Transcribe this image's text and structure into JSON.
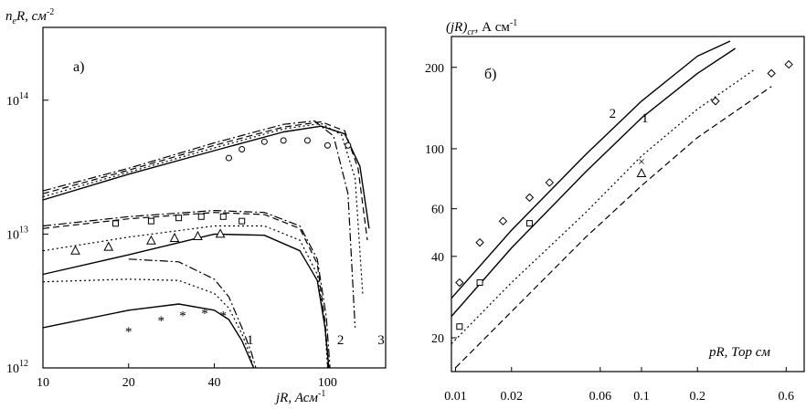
{
  "chart_data": [
    {
      "panel_label": "а)",
      "type": "line",
      "x_axis": {
        "label": "jR, Асм",
        "label_sup": "-1",
        "ticks": [
          "10",
          "20",
          "40",
          "100"
        ],
        "scale": "log",
        "range": [
          10,
          160
        ]
      },
      "y_axis": {
        "label": "n",
        "label_sub": "e",
        "label_rest": "R, см",
        "label_sup": "-2",
        "ticks": [
          {
            "value": 1000000000000.0,
            "base": "10",
            "exp": "12"
          },
          {
            "value": 10000000000000.0,
            "base": "10",
            "exp": "13"
          },
          {
            "value": 100000000000000.0,
            "base": "10",
            "exp": "14"
          }
        ],
        "scale": "log",
        "range": [
          1000000000000.0,
          350000000000000.0
        ]
      },
      "curve_labels": [
        {
          "text": "1",
          "at": [
            52,
            1500000000000.0
          ]
        },
        {
          "text": "2",
          "at": [
            108,
            1500000000000.0
          ]
        },
        {
          "text": "3",
          "at": [
            150,
            1500000000000.0
          ]
        }
      ],
      "series": [
        {
          "group": "3",
          "style": "solid",
          "x": [
            10,
            20,
            40,
            70,
            95,
            115,
            130,
            140
          ],
          "y": [
            18000000000000.0,
            28000000000000.0,
            42000000000000.0,
            58000000000000.0,
            64000000000000.0,
            56000000000000.0,
            32000000000000.0,
            11000000000000.0
          ]
        },
        {
          "group": "3",
          "style": "dashed",
          "x": [
            10,
            20,
            40,
            70,
            95,
            115,
            128,
            138
          ],
          "y": [
            20000000000000.0,
            30000000000000.0,
            46000000000000.0,
            63000000000000.0,
            69000000000000.0,
            59000000000000.0,
            31000000000000.0,
            9000000000000.0
          ]
        },
        {
          "group": "3",
          "style": "dotted",
          "x": [
            10,
            20,
            40,
            70,
            95,
            112,
            125,
            133
          ],
          "y": [
            19000000000000.0,
            29000000000000.0,
            44000000000000.0,
            61000000000000.0,
            67000000000000.0,
            55000000000000.0,
            26000000000000.0,
            3500000000000.0
          ]
        },
        {
          "group": "3",
          "style": "dashdot",
          "x": [
            10,
            20,
            40,
            70,
            90,
            105,
            118,
            125
          ],
          "y": [
            21000000000000.0,
            31000000000000.0,
            48000000000000.0,
            66000000000000.0,
            70000000000000.0,
            54000000000000.0,
            20000000000000.0,
            2000000000000.0
          ]
        },
        {
          "group": "2",
          "style": "solid",
          "x": [
            10,
            20,
            40,
            60,
            80,
            92,
            98,
            101
          ],
          "y": [
            5000000000000.0,
            7000000000000.0,
            10000000000000.0,
            9800000000000.0,
            7500000000000.0,
            4500000000000.0,
            2000000000000.0,
            1000000000000.0
          ]
        },
        {
          "group": "2",
          "style": "dashed",
          "x": [
            10,
            20,
            40,
            60,
            80,
            92,
            98,
            101
          ],
          "y": [
            11000000000000.0,
            13000000000000.0,
            14500000000000.0,
            14000000000000.0,
            11000000000000.0,
            6000000000000.0,
            2200000000000.0,
            1000000000000.0
          ]
        },
        {
          "group": "2",
          "style": "dotted",
          "x": [
            10,
            20,
            40,
            60,
            80,
            92,
            98,
            100
          ],
          "y": [
            7500000000000.0,
            9500000000000.0,
            11500000000000.0,
            11500000000000.0,
            9000000000000.0,
            5000000000000.0,
            2000000000000.0,
            1000000000000.0
          ]
        },
        {
          "group": "2",
          "style": "dashdot",
          "x": [
            10,
            20,
            40,
            60,
            80,
            92,
            99,
            102
          ],
          "y": [
            11500000000000.0,
            13500000000000.0,
            15000000000000.0,
            14500000000000.0,
            11500000000000.0,
            6500000000000.0,
            2400000000000.0,
            1000000000000.0
          ]
        },
        {
          "group": "1",
          "style": "solid",
          "x": [
            10,
            20,
            30,
            40,
            45,
            50,
            53,
            55
          ],
          "y": [
            2000000000000.0,
            2700000000000.0,
            3000000000000.0,
            2700000000000.0,
            2300000000000.0,
            1600000000000.0,
            1200000000000.0,
            1000000000000.0
          ]
        },
        {
          "group": "1",
          "style": "dotted",
          "x": [
            10,
            20,
            30,
            40,
            45,
            50,
            53,
            55
          ],
          "y": [
            4400000000000.0,
            4600000000000.0,
            4500000000000.0,
            3600000000000.0,
            2800000000000.0,
            1800000000000.0,
            1300000000000.0,
            1000000000000.0
          ]
        },
        {
          "group": "1",
          "style": "dashdot",
          "x": [
            20,
            30,
            40,
            45,
            50,
            54,
            56
          ],
          "y": [
            6500000000000.0,
            6200000000000.0,
            4600000000000.0,
            3400000000000.0,
            2000000000000.0,
            1300000000000.0,
            1000000000000.0
          ]
        }
      ],
      "markers": [
        {
          "shape": "circle",
          "x": [
            45,
            50,
            60,
            70,
            85,
            100,
            118
          ],
          "y": [
            37000000000000.0,
            43000000000000.0,
            49000000000000.0,
            50000000000000.0,
            50000000000000.0,
            46000000000000.0,
            46000000000000.0
          ]
        },
        {
          "shape": "square",
          "x": [
            18,
            24,
            30,
            36,
            43,
            50
          ],
          "y": [
            12000000000000.0,
            12500000000000.0,
            13200000000000.0,
            13500000000000.0,
            13500000000000.0,
            12500000000000.0
          ]
        },
        {
          "shape": "triangle",
          "x": [
            13,
            17,
            24,
            29,
            35,
            42
          ],
          "y": [
            7500000000000.0,
            8000000000000.0,
            8900000000000.0,
            9300000000000.0,
            9600000000000.0,
            10000000000000.0
          ]
        },
        {
          "shape": "star",
          "x": [
            20,
            26,
            31,
            37,
            43
          ],
          "y": [
            1900000000000.0,
            2300000000000.0,
            2500000000000.0,
            2600000000000.0,
            2500000000000.0
          ]
        }
      ]
    },
    {
      "panel_label": "б)",
      "type": "line",
      "x_axis": {
        "label": "pR, Тор см",
        "ticks": [
          "0.01",
          "0.02",
          "0.06",
          "0.1",
          "0.2",
          "0.6"
        ],
        "scale": "log",
        "range": [
          0.0095,
          0.75
        ]
      },
      "y_axis": {
        "label": "(jR)",
        "label_sub": "cr",
        "label_rest": ", А см",
        "label_sup": "-1",
        "ticks": [
          "20",
          "40",
          "60",
          "100",
          "200"
        ],
        "scale": "log",
        "range": [
          15,
          260
        ]
      },
      "curve_labels": [
        {
          "text": "2",
          "at": [
            0.067,
            130
          ]
        },
        {
          "text": "1",
          "at": [
            0.1,
            125
          ]
        }
      ],
      "series": [
        {
          "label": "2",
          "style": "solid",
          "x": [
            0.0095,
            0.02,
            0.05,
            0.1,
            0.2,
            0.3
          ],
          "y": [
            28,
            50,
            95,
            150,
            220,
            250
          ]
        },
        {
          "label": "1",
          "style": "solid",
          "x": [
            0.0095,
            0.02,
            0.05,
            0.1,
            0.2,
            0.32
          ],
          "y": [
            24,
            43,
            82,
            130,
            190,
            235
          ]
        },
        {
          "style": "dotted",
          "x": [
            0.0095,
            0.02,
            0.05,
            0.1,
            0.2,
            0.4
          ],
          "y": [
            19,
            32,
            58,
            94,
            140,
            195
          ]
        },
        {
          "style": "dashed",
          "x": [
            0.01,
            0.02,
            0.05,
            0.1,
            0.2,
            0.5
          ],
          "y": [
            15.5,
            25,
            47,
            73,
            110,
            170
          ]
        }
      ],
      "markers": [
        {
          "shape": "diamond",
          "x": [
            0.0105,
            0.0135,
            0.018,
            0.025,
            0.032,
            0.25,
            0.5,
            0.62
          ],
          "y": [
            32,
            45,
            54,
            66,
            75,
            150,
            190,
            205
          ]
        },
        {
          "shape": "square",
          "x": [
            0.0105,
            0.0135,
            0.025
          ],
          "y": [
            22,
            32,
            53
          ]
        },
        {
          "shape": "triangle",
          "x": [
            0.1
          ],
          "y": [
            81
          ]
        },
        {
          "shape": "cross",
          "x": [
            0.1
          ],
          "y": [
            90
          ]
        }
      ]
    }
  ]
}
